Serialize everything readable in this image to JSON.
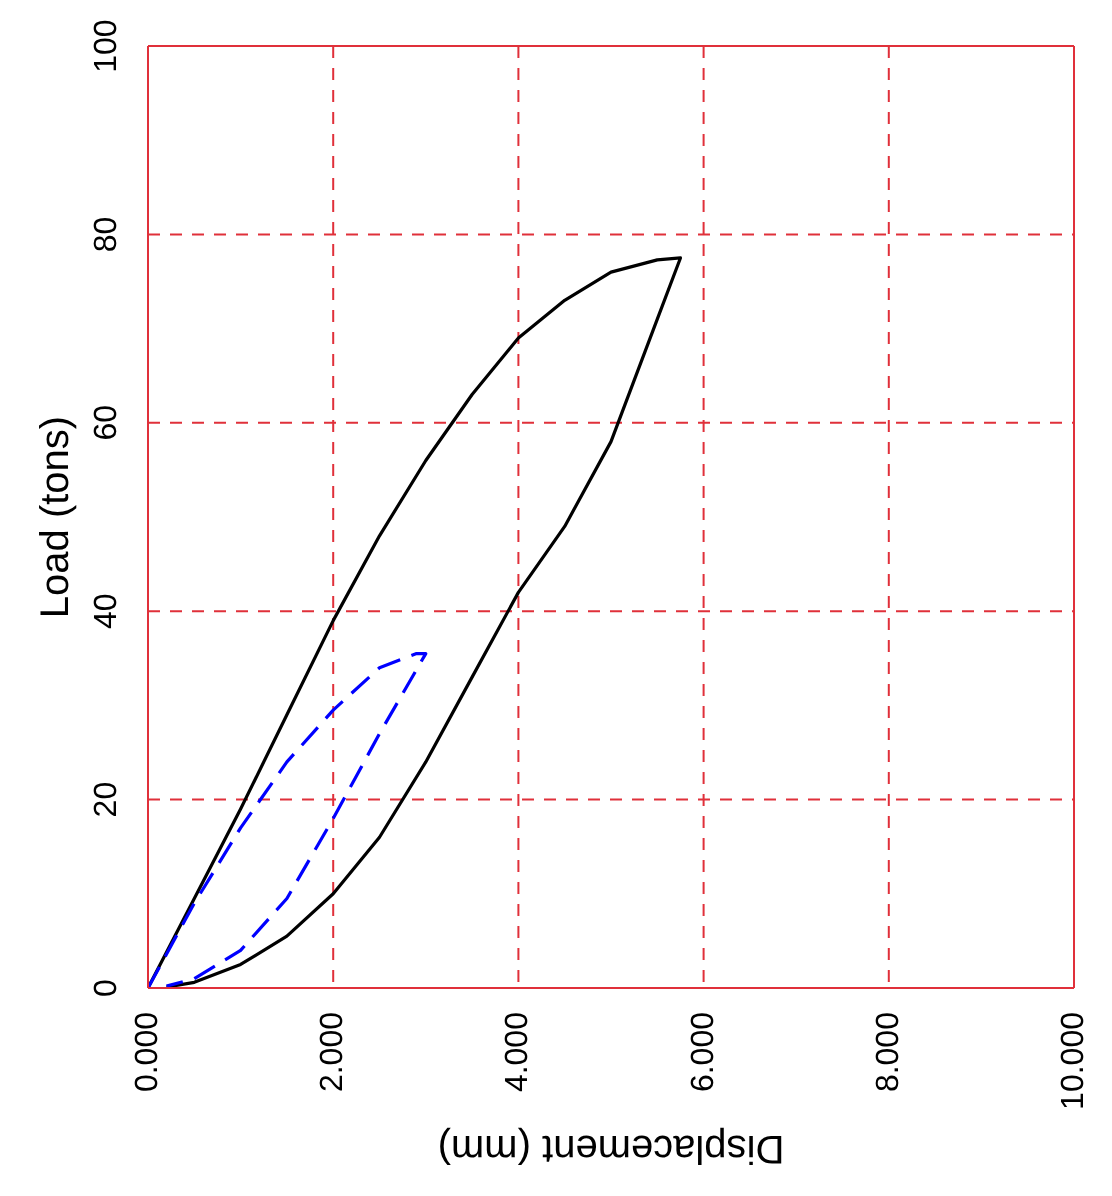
{
  "chart_data": {
    "type": "line",
    "xlabel": "Displacement (mm)",
    "ylabel": "Load (tons)",
    "xlim": [
      0,
      10
    ],
    "xticks": [
      {
        "value": 0,
        "label": "0.000"
      },
      {
        "value": 2,
        "label": "2.000"
      },
      {
        "value": 4,
        "label": "4.000"
      },
      {
        "value": 6,
        "label": "6.000"
      },
      {
        "value": 8,
        "label": "8.000"
      },
      {
        "value": 10,
        "label": "10.000"
      }
    ],
    "ylim": [
      0,
      100
    ],
    "yticks": [
      0,
      20,
      40,
      60,
      80,
      100
    ],
    "grid": true,
    "marker": "none",
    "series": [
      {
        "color": "#000000",
        "line_style": "solid",
        "x": [
          0,
          0.5,
          1,
          1.5,
          2,
          2.5,
          3,
          3.5,
          4,
          4.5,
          5,
          5.5,
          5.75,
          5.5,
          5,
          4.5,
          4,
          3.5,
          3,
          2.5,
          2,
          1.5,
          1,
          0.5,
          0.2
        ],
        "values": [
          0,
          9.5,
          19,
          29,
          39,
          48,
          56,
          63,
          69,
          73,
          76,
          77.3,
          77.5,
          71,
          58,
          49,
          42,
          33,
          24,
          16,
          10,
          5.5,
          2.5,
          0.6,
          0.1
        ]
      },
      {
        "color": "#0000ff",
        "line_style": "dashed",
        "x": [
          0,
          0.5,
          1,
          1.5,
          2,
          2.5,
          2.9,
          3,
          2.5,
          2,
          1.5,
          1,
          0.5,
          0.2
        ],
        "values": [
          0,
          9,
          17,
          24,
          29.5,
          34,
          35.5,
          35.5,
          27,
          18,
          9.5,
          4,
          1,
          0.2
        ]
      }
    ]
  }
}
